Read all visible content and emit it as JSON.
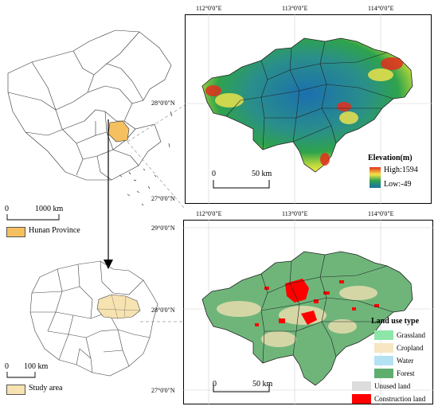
{
  "china_map": {
    "scale_zero": "0",
    "scale_max": "1000 km",
    "legend_label": "Hunan Province",
    "legend_color": "#f5c060"
  },
  "hunan_map": {
    "scale_zero": "0",
    "scale_max": "100 km",
    "legend_label": "Study area",
    "legend_color": "#f7e3b1"
  },
  "elevation_map": {
    "lon_ticks": [
      "112°0'0\"E",
      "113°0'0\"E",
      "114°0'0\"E"
    ],
    "lat_ticks": [
      "28°0'0\"N",
      "27°0'0\"N"
    ],
    "scale_zero": "0",
    "scale_max": "50 km",
    "legend_title": "Elevation(m)",
    "high_label": "High:1594",
    "low_label": "Low:-49",
    "ramp_colors": [
      "#e32f1c",
      "#f6e64a",
      "#2fa34c",
      "#1b6fae"
    ]
  },
  "landuse_map": {
    "lon_ticks": [
      "112°0'0\"E",
      "113°0'0\"E",
      "114°0'0\"E"
    ],
    "lat_ticks": [
      "29°0'0\"N",
      "28°0'0\"N",
      "27°0'0\"N"
    ],
    "scale_zero": "0",
    "scale_max": "50 km",
    "legend_title": "Land use type",
    "classes": [
      {
        "label": "Grassland",
        "color": "#8ee6a8"
      },
      {
        "label": "Cropland",
        "color": "#f6e6c2"
      },
      {
        "label": "Water",
        "color": "#b3e2f5"
      },
      {
        "label": "Forest",
        "color": "#5fae6e"
      },
      {
        "label": "Unused land",
        "color": "#dcdcdc"
      },
      {
        "label": "Construction land",
        "color": "#ff0000"
      }
    ]
  }
}
